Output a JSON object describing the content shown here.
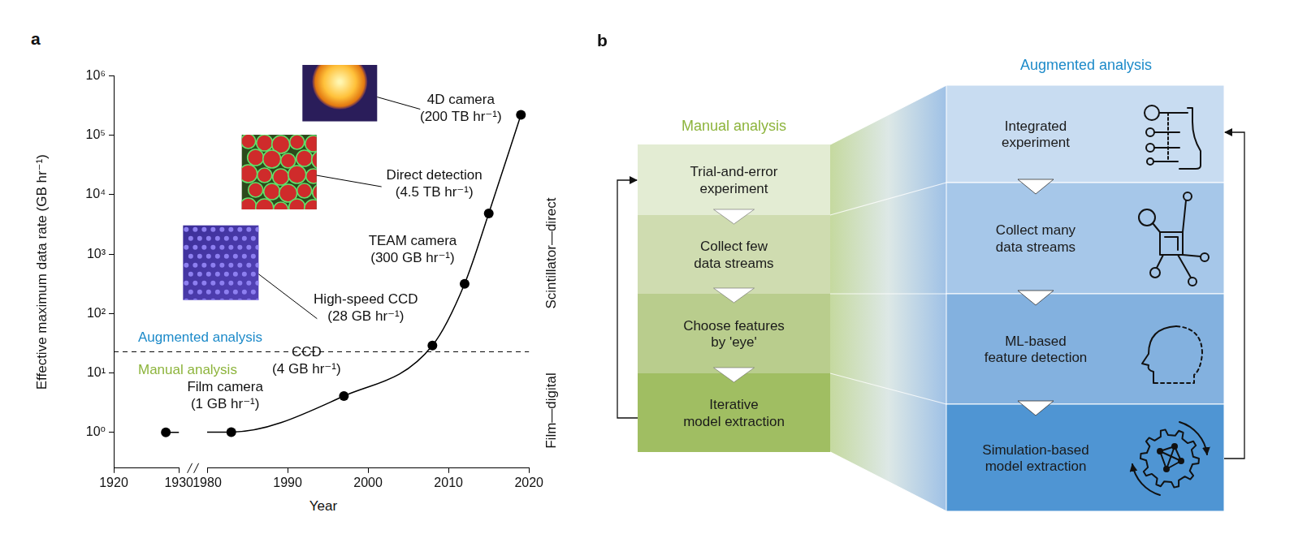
{
  "chart_data": {
    "type": "line",
    "panel_label": "a",
    "x_label": "Year",
    "y_label": "Effective maximum data rate (GB hr⁻¹)",
    "x": [
      1928,
      1983,
      1997,
      2008,
      2012,
      2015,
      2019
    ],
    "values": [
      1,
      1,
      4,
      28,
      300,
      4500,
      200000
    ],
    "point_labels": [
      [
        "Film camera",
        "(1 GB hr⁻¹)"
      ],
      null,
      [
        "CCD",
        "(4 GB hr⁻¹)"
      ],
      [
        "High-speed CCD",
        "(28 GB hr⁻¹)"
      ],
      [
        "TEAM camera",
        "(300 GB hr⁻¹)"
      ],
      [
        "Direct detection",
        "(4.5 TB hr⁻¹)"
      ],
      [
        "4D camera",
        "(200 TB hr⁻¹)"
      ]
    ],
    "color": "#000000",
    "marker": "circle",
    "line_style": "solid",
    "xlim": [
      1920,
      2020
    ],
    "xticks": [
      1920,
      1930,
      1980,
      1990,
      2000,
      2010,
      2020
    ],
    "ylim": [
      0.25,
      1000000
    ],
    "yticks": [
      {
        "value": 1,
        "label": "10⁰"
      },
      {
        "value": 10,
        "label": "10¹"
      },
      {
        "value": 100,
        "label": "10²"
      },
      {
        "value": 1000,
        "label": "10³"
      },
      {
        "value": 10000,
        "label": "10⁴"
      },
      {
        "value": 100000,
        "label": "10⁵"
      },
      {
        "value": 1000000,
        "label": "10⁶"
      }
    ],
    "log": "y",
    "grid": false,
    "threshold": {
      "value": 22,
      "above": "Augmented analysis",
      "below": "Manual analysis"
    },
    "side_labels": [
      "Scintillator—direct",
      "Film—digital"
    ]
  },
  "panel_b": {
    "label": "b",
    "manual": {
      "title": "Manual analysis",
      "steps": [
        [
          "Trial-and-error",
          "experiment"
        ],
        [
          "Collect few",
          "data streams"
        ],
        [
          "Choose features",
          "by 'eye'"
        ],
        [
          "Iterative",
          "model extraction"
        ]
      ]
    },
    "augmented": {
      "title": "Augmented analysis",
      "steps": [
        [
          "Integrated",
          "experiment"
        ],
        [
          "Collect many",
          "data streams"
        ],
        [
          "ML-based",
          "feature detection"
        ],
        [
          "Simulation-based",
          "model extraction"
        ]
      ]
    }
  }
}
